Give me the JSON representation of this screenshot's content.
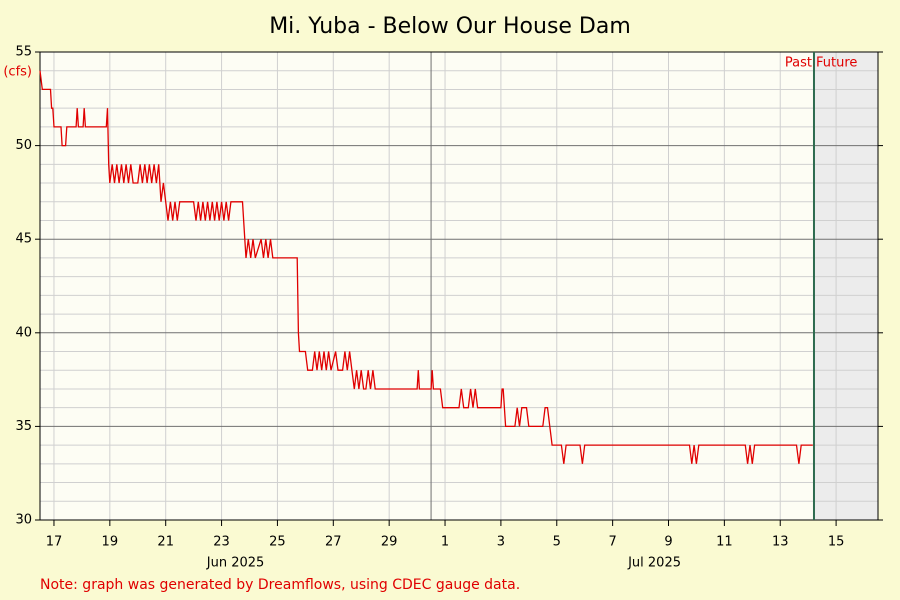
{
  "chart_data": {
    "type": "line",
    "title": "Mi. Yuba - Below Our House Dam",
    "y_label": "(cfs)",
    "note": "Note: graph was generated by Dreamflows, using CDEC gauge data.",
    "past_label": "Past",
    "future_label": "Future",
    "now": "2025-07-14T17:00",
    "color": "#e00000",
    "xlim": [
      "2025-06-17T00:00",
      "2025-07-17T00:00"
    ],
    "ylim": [
      30,
      55
    ],
    "yticks": [
      30,
      35,
      40,
      45,
      50,
      55
    ],
    "yminorticks": [
      31,
      32,
      33,
      34,
      36,
      37,
      38,
      39,
      41,
      42,
      43,
      44,
      46,
      47,
      48,
      49,
      51,
      52,
      53,
      54
    ],
    "grid": true,
    "xticks": [
      {
        "value": "2025-06-17T12:00",
        "label": "17"
      },
      {
        "value": "2025-06-19T12:00",
        "label": "19"
      },
      {
        "value": "2025-06-21T12:00",
        "label": "21"
      },
      {
        "value": "2025-06-23T12:00",
        "label": "23"
      },
      {
        "value": "2025-06-25T12:00",
        "label": "25"
      },
      {
        "value": "2025-06-27T12:00",
        "label": "27"
      },
      {
        "value": "2025-06-29T12:00",
        "label": "29"
      },
      {
        "value": "2025-07-01T12:00",
        "label": "1"
      },
      {
        "value": "2025-07-03T12:00",
        "label": "3"
      },
      {
        "value": "2025-07-05T12:00",
        "label": "5"
      },
      {
        "value": "2025-07-07T12:00",
        "label": "7"
      },
      {
        "value": "2025-07-09T12:00",
        "label": "9"
      },
      {
        "value": "2025-07-11T12:00",
        "label": "11"
      },
      {
        "value": "2025-07-13T12:00",
        "label": "13"
      },
      {
        "value": "2025-07-15T12:00",
        "label": "15"
      }
    ],
    "month_labels": [
      {
        "value": "2025-06-24T00:00",
        "label": "Jun 2025"
      },
      {
        "value": "2025-07-09T00:00",
        "label": "Jul 2025"
      }
    ],
    "month_line": "2025-07-01T00:00",
    "x": [
      "2025-06-17T00:00",
      "2025-06-17T02:00",
      "2025-06-17T09:00",
      "2025-06-17T10:00",
      "2025-06-17T11:00",
      "2025-06-17T12:00",
      "2025-06-17T18:00",
      "2025-06-17T19:00",
      "2025-06-17T22:00",
      "2025-06-17T23:00",
      "2025-06-18T07:00",
      "2025-06-18T08:00",
      "2025-06-18T09:00",
      "2025-06-18T13:00",
      "2025-06-18T14:00",
      "2025-06-18T15:00",
      "2025-06-19T09:00",
      "2025-06-19T10:00",
      "2025-06-19T11:00",
      "2025-06-19T12:00",
      "2025-06-19T14:00",
      "2025-06-19T16:00",
      "2025-06-19T18:00",
      "2025-06-19T20:00",
      "2025-06-19T22:00",
      "2025-06-20T00:00",
      "2025-06-20T02:00",
      "2025-06-20T04:00",
      "2025-06-20T06:00",
      "2025-06-20T08:00",
      "2025-06-20T12:00",
      "2025-06-20T14:00",
      "2025-06-20T16:00",
      "2025-06-20T18:00",
      "2025-06-20T20:00",
      "2025-06-20T22:00",
      "2025-06-21T00:00",
      "2025-06-21T02:00",
      "2025-06-21T04:00",
      "2025-06-21T06:00",
      "2025-06-21T08:00",
      "2025-06-21T10:00",
      "2025-06-21T12:00",
      "2025-06-21T14:00",
      "2025-06-21T16:00",
      "2025-06-21T18:00",
      "2025-06-21T20:00",
      "2025-06-21T22:00",
      "2025-06-22T00:00",
      "2025-06-22T12:00",
      "2025-06-22T14:00",
      "2025-06-22T16:00",
      "2025-06-22T18:00",
      "2025-06-22T20:00",
      "2025-06-22T22:00",
      "2025-06-23T00:00",
      "2025-06-23T02:00",
      "2025-06-23T04:00",
      "2025-06-23T06:00",
      "2025-06-23T08:00",
      "2025-06-23T10:00",
      "2025-06-23T12:00",
      "2025-06-23T14:00",
      "2025-06-23T16:00",
      "2025-06-23T18:00",
      "2025-06-23T20:00",
      "2025-06-24T06:00",
      "2025-06-24T08:00",
      "2025-06-24T09:00",
      "2025-06-24T11:00",
      "2025-06-24T13:00",
      "2025-06-24T15:00",
      "2025-06-24T17:00",
      "2025-06-24T22:00",
      "2025-06-25T00:00",
      "2025-06-25T02:00",
      "2025-06-25T04:00",
      "2025-06-25T06:00",
      "2025-06-25T08:00",
      "2025-06-26T05:00",
      "2025-06-26T06:00",
      "2025-06-26T07:00",
      "2025-06-26T12:00",
      "2025-06-26T14:00",
      "2025-06-26T18:00",
      "2025-06-26T20:00",
      "2025-06-26T22:00",
      "2025-06-27T00:00",
      "2025-06-27T02:00",
      "2025-06-27T04:00",
      "2025-06-27T06:00",
      "2025-06-27T08:00",
      "2025-06-27T10:00",
      "2025-06-27T14:00",
      "2025-06-27T16:00",
      "2025-06-27T20:00",
      "2025-06-27T22:00",
      "2025-06-28T00:00",
      "2025-06-28T02:00",
      "2025-06-28T04:00",
      "2025-06-28T06:00",
      "2025-06-28T08:00",
      "2025-06-28T10:00",
      "2025-06-28T12:00",
      "2025-06-28T14:00",
      "2025-06-28T16:00",
      "2025-06-28T18:00",
      "2025-06-28T20:00",
      "2025-06-28T22:00",
      "2025-06-29T00:00",
      "2025-06-30T12:00",
      "2025-06-30T13:00",
      "2025-06-30T14:00",
      "2025-07-01T00:00",
      "2025-07-01T01:00",
      "2025-07-01T02:00",
      "2025-07-01T08:00",
      "2025-07-01T10:00",
      "2025-07-02T00:00",
      "2025-07-02T02:00",
      "2025-07-02T04:00",
      "2025-07-02T08:00",
      "2025-07-02T10:00",
      "2025-07-02T12:00",
      "2025-07-02T14:00",
      "2025-07-02T16:00",
      "2025-07-03T12:00",
      "2025-07-03T13:00",
      "2025-07-03T14:00",
      "2025-07-03T16:00",
      "2025-07-04T00:00",
      "2025-07-04T02:00",
      "2025-07-04T04:00",
      "2025-07-04T06:00",
      "2025-07-04T10:00",
      "2025-07-04T12:00",
      "2025-07-05T00:00",
      "2025-07-05T02:00",
      "2025-07-05T04:00",
      "2025-07-05T06:00",
      "2025-07-05T08:00",
      "2025-07-05T12:00",
      "2025-07-05T16:00",
      "2025-07-05T18:00",
      "2025-07-05T20:00",
      "2025-07-06T08:00",
      "2025-07-06T10:00",
      "2025-07-06T12:00",
      "2025-07-10T06:00",
      "2025-07-10T08:00",
      "2025-07-10T10:00",
      "2025-07-10T12:00",
      "2025-07-10T14:00",
      "2025-07-12T06:00",
      "2025-07-12T08:00",
      "2025-07-12T10:00",
      "2025-07-12T12:00",
      "2025-07-12T14:00",
      "2025-07-14T02:00",
      "2025-07-14T04:00",
      "2025-07-14T06:00",
      "2025-07-14T16:00"
    ],
    "values": [
      54,
      53,
      53,
      52,
      52,
      51,
      51,
      50,
      50,
      51,
      51,
      52,
      51,
      51,
      52,
      51,
      51,
      52,
      49,
      48,
      49,
      48,
      49,
      48,
      49,
      48,
      49,
      48,
      49,
      48,
      48,
      49,
      48,
      49,
      48,
      49,
      48,
      49,
      48,
      49,
      47,
      48,
      47,
      46,
      47,
      46,
      47,
      46,
      47,
      47,
      46,
      47,
      46,
      47,
      46,
      47,
      46,
      47,
      46,
      47,
      46,
      47,
      46,
      47,
      46,
      47,
      47,
      45,
      44,
      45,
      44,
      45,
      44,
      45,
      44,
      45,
      44,
      45,
      44,
      44,
      40,
      39,
      39,
      38,
      38,
      39,
      38,
      39,
      38,
      39,
      38,
      39,
      38,
      39,
      38,
      38,
      39,
      38,
      39,
      38,
      37,
      38,
      37,
      38,
      37,
      37,
      38,
      37,
      38,
      37,
      37,
      38,
      37,
      37,
      38,
      37,
      37,
      36,
      36,
      37,
      36,
      36,
      37,
      36,
      37,
      36,
      36,
      37,
      37,
      35,
      35,
      36,
      35,
      36,
      36,
      35,
      35,
      36,
      36,
      35,
      34,
      34,
      34,
      33,
      34,
      34,
      33,
      34,
      34,
      33,
      34,
      33,
      34,
      34,
      33,
      34,
      33,
      34,
      34,
      33,
      34,
      34
    ]
  }
}
